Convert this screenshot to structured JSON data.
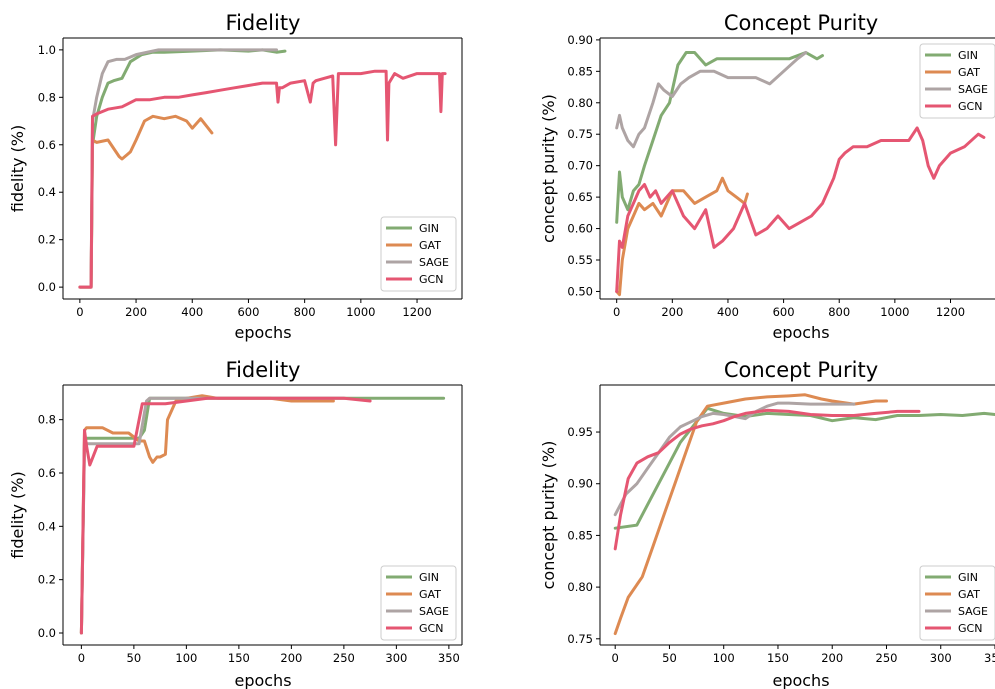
{
  "colors": {
    "GIN": "#82ab72",
    "GAT": "#dd8a52",
    "SAGE": "#aea4a4",
    "GCN": "#e55672"
  },
  "chart_data": [
    {
      "type": "line",
      "title": "Fidelity",
      "xlabel": "epochs",
      "ylabel": "fidelity (%)",
      "xlim": [
        -60,
        1360
      ],
      "ylim": [
        -0.05,
        1.05
      ],
      "xticks": [
        0,
        200,
        400,
        600,
        800,
        1000,
        1200
      ],
      "yticks": [
        0.0,
        0.2,
        0.4,
        0.6,
        0.8,
        1.0
      ],
      "tick_labels_x": [
        "0",
        "200",
        "400",
        "600",
        "800",
        "1000",
        "1200"
      ],
      "tick_labels_y": [
        "0.0",
        "0.2",
        "0.4",
        "0.6",
        "0.8",
        "1.0"
      ],
      "legend": "lower-right",
      "grid": false,
      "series": [
        {
          "name": "GIN",
          "x": [
            0,
            40,
            45,
            60,
            80,
            100,
            120,
            150,
            180,
            220,
            260,
            300,
            400,
            500,
            600,
            650,
            700,
            730
          ],
          "y": [
            0,
            0,
            0.6,
            0.72,
            0.8,
            0.86,
            0.87,
            0.88,
            0.95,
            0.98,
            0.99,
            0.99,
            0.995,
            1.0,
            0.995,
            1.0,
            0.99,
            0.995
          ]
        },
        {
          "name": "GAT",
          "x": [
            0,
            40,
            45,
            60,
            100,
            140,
            150,
            180,
            200,
            230,
            260,
            300,
            340,
            380,
            400,
            430,
            450,
            470
          ],
          "y": [
            0,
            0,
            0.62,
            0.61,
            0.62,
            0.55,
            0.54,
            0.57,
            0.62,
            0.7,
            0.72,
            0.71,
            0.72,
            0.7,
            0.67,
            0.71,
            0.68,
            0.65
          ]
        },
        {
          "name": "SAGE",
          "x": [
            0,
            40,
            45,
            60,
            80,
            100,
            130,
            160,
            200,
            240,
            280,
            350,
            450,
            550,
            650,
            700
          ],
          "y": [
            0,
            0,
            0.7,
            0.8,
            0.9,
            0.95,
            0.96,
            0.96,
            0.98,
            0.99,
            1.0,
            1.0,
            1.0,
            1.0,
            1.0,
            1.0
          ]
        },
        {
          "name": "GCN",
          "x": [
            0,
            40,
            45,
            60,
            100,
            150,
            200,
            250,
            300,
            350,
            400,
            450,
            500,
            550,
            600,
            650,
            700,
            705,
            710,
            720,
            750,
            800,
            820,
            830,
            840,
            870,
            900,
            910,
            920,
            950,
            1000,
            1050,
            1090,
            1095,
            1100,
            1120,
            1150,
            1200,
            1250,
            1280,
            1285,
            1290,
            1300
          ],
          "y": [
            0,
            0,
            0.72,
            0.73,
            0.75,
            0.76,
            0.79,
            0.79,
            0.8,
            0.8,
            0.81,
            0.82,
            0.83,
            0.84,
            0.85,
            0.86,
            0.86,
            0.78,
            0.84,
            0.84,
            0.86,
            0.87,
            0.78,
            0.86,
            0.87,
            0.88,
            0.89,
            0.6,
            0.9,
            0.9,
            0.9,
            0.91,
            0.91,
            0.62,
            0.86,
            0.9,
            0.88,
            0.9,
            0.9,
            0.9,
            0.74,
            0.9,
            0.9
          ]
        }
      ]
    },
    {
      "type": "line",
      "title": "Concept Purity",
      "xlabel": "epochs",
      "ylabel": "concept purity (%)",
      "xlim": [
        -60,
        1360
      ],
      "ylim": [
        0.488,
        0.903
      ],
      "xticks": [
        0,
        200,
        400,
        600,
        800,
        1000,
        1200
      ],
      "yticks": [
        0.5,
        0.55,
        0.6,
        0.65,
        0.7,
        0.75,
        0.8,
        0.85,
        0.9
      ],
      "tick_labels_x": [
        "0",
        "200",
        "400",
        "600",
        "800",
        "1000",
        "1200"
      ],
      "tick_labels_y": [
        "0.50",
        "0.55",
        "0.60",
        "0.65",
        "0.70",
        "0.75",
        "0.80",
        "0.85",
        "0.90"
      ],
      "legend": "upper-right",
      "grid": false,
      "series": [
        {
          "name": "GIN",
          "x": [
            0,
            10,
            20,
            40,
            60,
            80,
            100,
            130,
            160,
            190,
            220,
            250,
            280,
            320,
            360,
            400,
            450,
            500,
            560,
            620,
            680,
            720,
            740
          ],
          "y": [
            0.61,
            0.69,
            0.65,
            0.63,
            0.66,
            0.67,
            0.7,
            0.74,
            0.78,
            0.8,
            0.86,
            0.88,
            0.88,
            0.86,
            0.87,
            0.87,
            0.87,
            0.87,
            0.87,
            0.87,
            0.88,
            0.87,
            0.875
          ]
        },
        {
          "name": "GAT",
          "x": [
            0,
            10,
            20,
            40,
            60,
            80,
            100,
            130,
            160,
            200,
            240,
            280,
            320,
            360,
            380,
            400,
            430,
            460,
            470
          ],
          "y": [
            0.5,
            0.495,
            0.55,
            0.6,
            0.62,
            0.64,
            0.63,
            0.64,
            0.62,
            0.66,
            0.66,
            0.64,
            0.65,
            0.66,
            0.68,
            0.66,
            0.65,
            0.64,
            0.655
          ]
        },
        {
          "name": "SAGE",
          "x": [
            0,
            10,
            20,
            40,
            60,
            80,
            100,
            130,
            150,
            170,
            200,
            230,
            260,
            300,
            350,
            400,
            450,
            500,
            550,
            600,
            650,
            680
          ],
          "y": [
            0.76,
            0.78,
            0.76,
            0.74,
            0.73,
            0.75,
            0.76,
            0.8,
            0.83,
            0.82,
            0.81,
            0.83,
            0.84,
            0.85,
            0.85,
            0.84,
            0.84,
            0.84,
            0.83,
            0.85,
            0.87,
            0.88
          ]
        },
        {
          "name": "GCN",
          "x": [
            0,
            10,
            20,
            40,
            60,
            80,
            100,
            120,
            140,
            160,
            200,
            240,
            280,
            320,
            350,
            380,
            420,
            460,
            500,
            540,
            580,
            620,
            660,
            700,
            740,
            780,
            800,
            820,
            850,
            900,
            950,
            1000,
            1050,
            1080,
            1100,
            1120,
            1140,
            1160,
            1200,
            1250,
            1300,
            1320
          ],
          "y": [
            0.5,
            0.58,
            0.57,
            0.62,
            0.64,
            0.66,
            0.67,
            0.65,
            0.66,
            0.64,
            0.66,
            0.62,
            0.6,
            0.63,
            0.57,
            0.58,
            0.6,
            0.64,
            0.59,
            0.6,
            0.62,
            0.6,
            0.61,
            0.62,
            0.64,
            0.68,
            0.71,
            0.72,
            0.73,
            0.73,
            0.74,
            0.74,
            0.74,
            0.76,
            0.74,
            0.7,
            0.68,
            0.7,
            0.72,
            0.73,
            0.75,
            0.745
          ]
        }
      ]
    },
    {
      "type": "line",
      "title": "Fidelity",
      "xlabel": "epochs",
      "ylabel": "fidelity (%)",
      "xlim": [
        -17.5,
        362.5
      ],
      "ylim": [
        -0.045,
        0.93
      ],
      "xticks": [
        0,
        50,
        100,
        150,
        200,
        250,
        300,
        350
      ],
      "yticks": [
        0.0,
        0.2,
        0.4,
        0.6,
        0.8
      ],
      "tick_labels_x": [
        "0",
        "50",
        "100",
        "150",
        "200",
        "250",
        "300",
        "350"
      ],
      "tick_labels_y": [
        "0.0",
        "0.2",
        "0.4",
        "0.6",
        "0.8"
      ],
      "legend": "lower-right",
      "grid": false,
      "series": [
        {
          "name": "GIN",
          "x": [
            0,
            3,
            5,
            10,
            20,
            40,
            55,
            60,
            65,
            80,
            100,
            150,
            200,
            250,
            300,
            345
          ],
          "y": [
            0,
            0.72,
            0.73,
            0.73,
            0.73,
            0.73,
            0.73,
            0.76,
            0.88,
            0.88,
            0.88,
            0.88,
            0.88,
            0.88,
            0.88,
            0.88
          ]
        },
        {
          "name": "GAT",
          "x": [
            0,
            3,
            5,
            10,
            20,
            30,
            40,
            45,
            55,
            60,
            65,
            68,
            72,
            75,
            80,
            82,
            90,
            100,
            115,
            130,
            150,
            180,
            200,
            220,
            240
          ],
          "y": [
            0,
            0.76,
            0.77,
            0.77,
            0.77,
            0.75,
            0.75,
            0.75,
            0.72,
            0.72,
            0.66,
            0.64,
            0.66,
            0.66,
            0.67,
            0.8,
            0.87,
            0.88,
            0.89,
            0.88,
            0.88,
            0.88,
            0.87,
            0.87,
            0.87
          ]
        },
        {
          "name": "SAGE",
          "x": [
            0,
            3,
            5,
            10,
            20,
            40,
            55,
            62,
            65,
            80,
            100,
            120,
            150,
            200,
            250
          ],
          "y": [
            0,
            0.7,
            0.71,
            0.71,
            0.71,
            0.71,
            0.71,
            0.87,
            0.88,
            0.88,
            0.88,
            0.88,
            0.88,
            0.88,
            0.88
          ]
        },
        {
          "name": "GCN",
          "x": [
            0,
            3,
            5,
            8,
            10,
            15,
            20,
            40,
            50,
            55,
            58,
            60,
            80,
            100,
            120,
            150,
            200,
            250,
            275
          ],
          "y": [
            0,
            0.76,
            0.7,
            0.63,
            0.65,
            0.7,
            0.7,
            0.7,
            0.7,
            0.8,
            0.86,
            0.86,
            0.86,
            0.87,
            0.88,
            0.88,
            0.88,
            0.88,
            0.87
          ]
        }
      ]
    },
    {
      "type": "line",
      "title": "Concept Purity",
      "xlabel": "epochs",
      "ylabel": "concept purity (%)",
      "xlim": [
        -14,
        350
      ],
      "ylim": [
        0.744,
        0.9955
      ],
      "xticks": [
        0,
        50,
        100,
        150,
        200,
        250,
        300,
        350
      ],
      "yticks": [
        0.75,
        0.8,
        0.85,
        0.9,
        0.95
      ],
      "tick_labels_x": [
        "0",
        "50",
        "100",
        "150",
        "200",
        "250",
        "300",
        "350"
      ],
      "tick_labels_y": [
        "0.75",
        "0.80",
        "0.85",
        "0.90",
        "0.95"
      ],
      "legend": "lower-right",
      "grid": false,
      "series": [
        {
          "name": "GIN",
          "x": [
            0,
            20,
            30,
            45,
            60,
            75,
            85,
            100,
            120,
            140,
            160,
            180,
            200,
            220,
            240,
            260,
            280,
            300,
            320,
            340,
            350
          ],
          "y": [
            0.857,
            0.86,
            0.88,
            0.91,
            0.94,
            0.96,
            0.973,
            0.968,
            0.965,
            0.968,
            0.967,
            0.966,
            0.961,
            0.964,
            0.962,
            0.966,
            0.966,
            0.967,
            0.966,
            0.968,
            0.967
          ]
        },
        {
          "name": "GAT",
          "x": [
            0,
            5,
            12,
            25,
            35,
            45,
            55,
            65,
            75,
            85,
            100,
            120,
            140,
            160,
            175,
            190,
            200,
            220,
            240,
            250
          ],
          "y": [
            0.755,
            0.77,
            0.79,
            0.81,
            0.84,
            0.87,
            0.9,
            0.93,
            0.96,
            0.975,
            0.978,
            0.982,
            0.984,
            0.985,
            0.986,
            0.982,
            0.98,
            0.977,
            0.98,
            0.98
          ]
        },
        {
          "name": "SAGE",
          "x": [
            0,
            10,
            20,
            30,
            40,
            50,
            60,
            70,
            80,
            90,
            100,
            110,
            120,
            130,
            140,
            150,
            160,
            180,
            200,
            220
          ],
          "y": [
            0.87,
            0.89,
            0.9,
            0.915,
            0.93,
            0.945,
            0.955,
            0.96,
            0.965,
            0.968,
            0.967,
            0.965,
            0.963,
            0.97,
            0.975,
            0.978,
            0.978,
            0.977,
            0.977,
            0.977
          ]
        },
        {
          "name": "GCN",
          "x": [
            0,
            5,
            12,
            20,
            30,
            40,
            50,
            60,
            70,
            80,
            90,
            100,
            110,
            120,
            140,
            160,
            180,
            200,
            220,
            240,
            260,
            280
          ],
          "y": [
            0.837,
            0.87,
            0.905,
            0.92,
            0.926,
            0.93,
            0.94,
            0.948,
            0.953,
            0.956,
            0.958,
            0.961,
            0.965,
            0.968,
            0.971,
            0.97,
            0.967,
            0.966,
            0.966,
            0.968,
            0.97,
            0.97
          ]
        }
      ]
    }
  ]
}
